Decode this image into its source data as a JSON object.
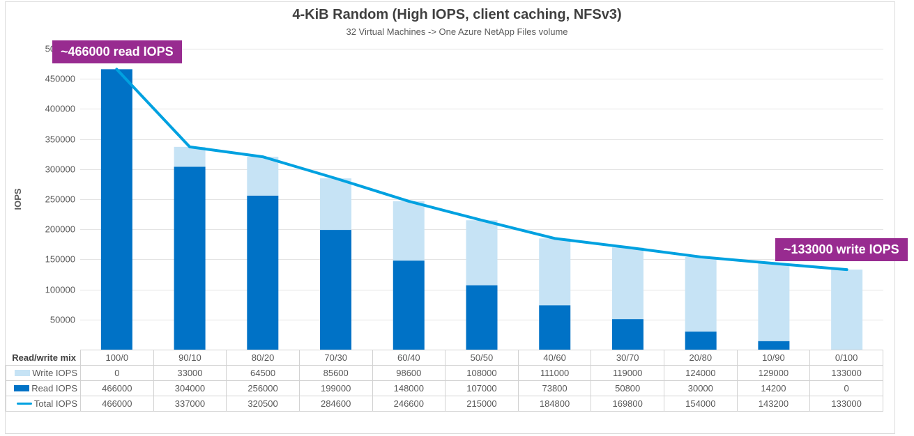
{
  "title": "4-KiB Random (High IOPS, client caching, NFSv3)",
  "subtitle": "32 Virtual Machines -> One Azure NetApp Files volume",
  "chart_data": {
    "type": "bar",
    "subtype": "stacked-bars-with-total-line",
    "title": "4-KiB Random (High IOPS, client caching, NFSv3)",
    "subtitle": "32 Virtual Machines -> One Azure NetApp Files volume",
    "ylabel": "IOPS",
    "ylim": [
      0,
      500000
    ],
    "ytick_step": 50000,
    "grid": true,
    "legend_position": "table-left",
    "row_header_label": "Read/write mix",
    "categories": [
      "100/0",
      "90/10",
      "80/20",
      "70/30",
      "60/40",
      "50/50",
      "40/60",
      "30/70",
      "20/80",
      "10/90",
      "0/100"
    ],
    "series": [
      {
        "name": "Write IOPS",
        "kind": "bar",
        "color": "#C6E3F5",
        "values": [
          0,
          33000,
          64500,
          85600,
          98600,
          108000,
          111000,
          119000,
          124000,
          129000,
          133000
        ]
      },
      {
        "name": "Read IOPS",
        "kind": "bar",
        "color": "#0072C6",
        "values": [
          466000,
          304000,
          256000,
          199000,
          148000,
          107000,
          73800,
          50800,
          30000,
          14200,
          0
        ]
      },
      {
        "name": "Total IOPS",
        "kind": "line",
        "color": "#00A1E0",
        "values": [
          466000,
          337000,
          320500,
          284600,
          246600,
          215000,
          184800,
          169800,
          154000,
          143200,
          133000
        ]
      }
    ],
    "annotations": [
      {
        "text": "~466000 read IOPS",
        "color": "#982B90",
        "position": "top-left"
      },
      {
        "text": "~133000 write IOPS",
        "color": "#982B90",
        "position": "right"
      }
    ]
  },
  "colors": {
    "grid": "#E4E4E4",
    "axis_text": "#595959",
    "table_border": "#D2D2D2",
    "annotation_bg": "#982B90"
  }
}
